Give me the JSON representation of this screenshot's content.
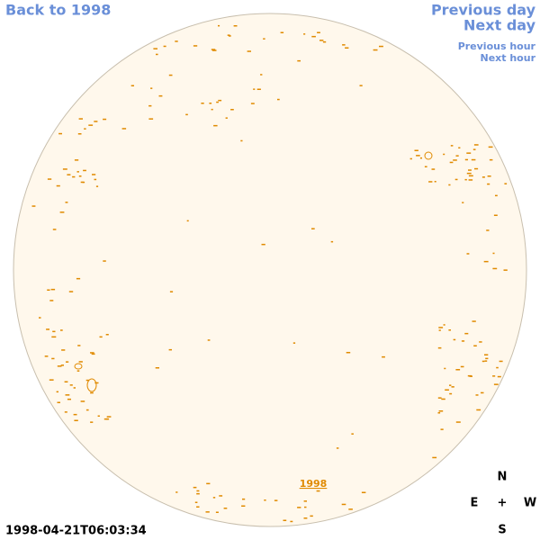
{
  "nav": {
    "back": "Back to 1998",
    "previous_day": "Previous day",
    "next_day": "Next day",
    "previous_hour": "Previous hour",
    "next_hour": "Next hour"
  },
  "disk_label": "1998",
  "timestamp": "1998-04-21T06:03:34",
  "compass": {
    "north": "N",
    "east": "E",
    "center": "+",
    "west": "W",
    "south": "S"
  }
}
